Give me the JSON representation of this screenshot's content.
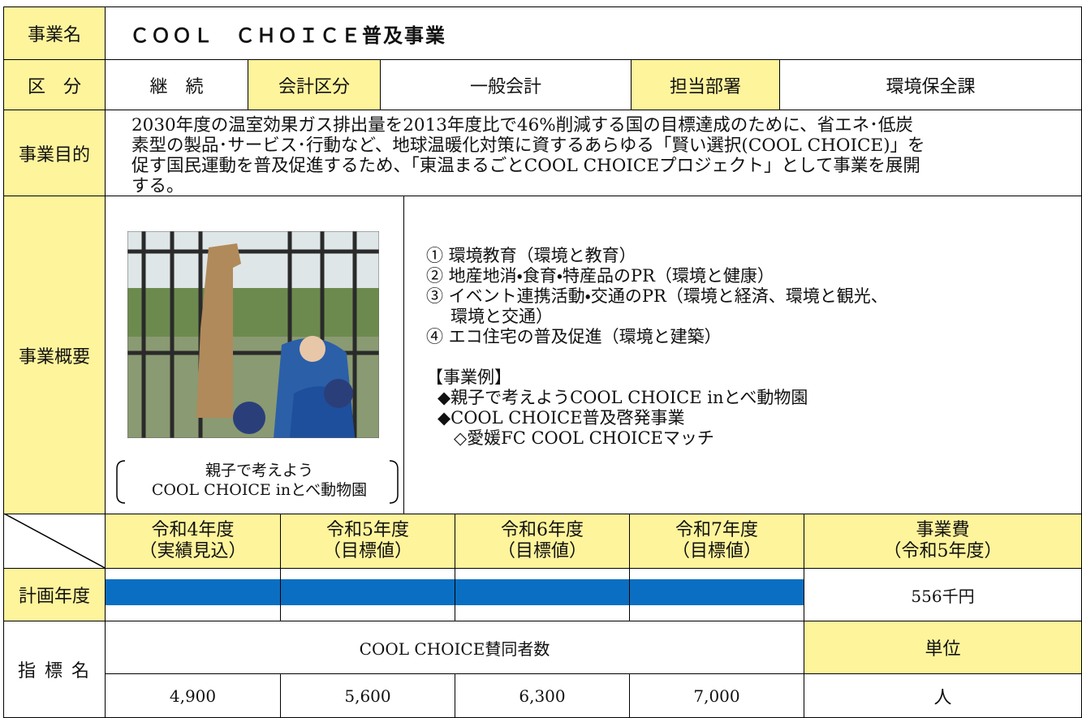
{
  "header": {
    "label": "事業名",
    "title": "ＣＯＯＬ　ＣＨＯＩＣＥ普及事業"
  },
  "classification": {
    "label": "区　分",
    "value": "継　続",
    "account_label": "会計区分",
    "account": "一般会計",
    "dept_label": "担当部署",
    "dept": "環境保全課"
  },
  "purpose": {
    "label": "事業目的",
    "lines": [
      "2030年度の温室効果ガス排出量を2013年度比で46%削減する国の目標達成のために、省エネ･低炭",
      "素型の製品･サービス･行動など、地球温暖化対策に資するあらゆる「賢い選択(COOL CHOICE)」を",
      "促す国民運動を普及促進するため、「東温まるごとCOOL CHOICEプロジェクト」として事業を展開",
      "する。"
    ]
  },
  "overview": {
    "label": "事業概要",
    "caption": [
      "親子で考えよう",
      "COOL CHOICE inとべ動物園"
    ],
    "items": [
      [
        "① 環境教育（環境と教育）"
      ],
      [
        "② 地産地消・食育・特産品のPR（環境と健康）"
      ],
      [
        "③ イベント連携活動・交通のPR（環境と経済、環境と観光、",
        "環境と交通）"
      ],
      [
        "④ エコ住宅の普及促進（環境と建築）"
      ]
    ],
    "examples_heading": "【事業例】",
    "examples": [
      "◆親子で考えようCOOL CHOICE inとべ動物園",
      "◆COOL CHOICE普及啓発事業",
      "◇愛媛FC COOL CHOICEマッチ"
    ]
  },
  "schedule": {
    "years": [
      [
        "令和4年度",
        "（実績見込）"
      ],
      [
        "令和5年度",
        "（目標値）"
      ],
      [
        "令和6年度",
        "（目標値）"
      ],
      [
        "令和7年度",
        "（目標値）"
      ]
    ],
    "cost_label": [
      "事業費",
      "（令和5年度）"
    ],
    "row_label": "計画年度",
    "cost": "556千円"
  },
  "indicator": {
    "label": "指 標 名",
    "name": "COOL CHOICE賛同者数",
    "unit_label": "単位",
    "values": [
      "4,900",
      "5,600",
      "6,300",
      "7,000"
    ],
    "unit": "人"
  }
}
